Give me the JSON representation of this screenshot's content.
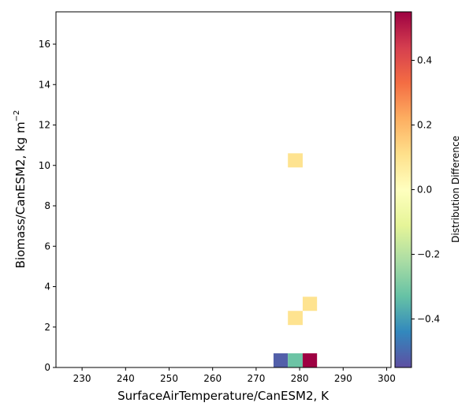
{
  "chart_data": {
    "type": "heatmap",
    "xlabel": "SurfaceAirTemperature/CanESM2,  K",
    "ylabel_main": "Biomass/CanESM2,  kg m",
    "ylabel_sup": "−2",
    "xlim": [
      224,
      301
    ],
    "ylim": [
      0,
      17.6
    ],
    "xticks": [
      230,
      240,
      250,
      260,
      270,
      280,
      290,
      300
    ],
    "yticks": [
      0,
      2,
      4,
      6,
      8,
      10,
      12,
      14,
      16
    ],
    "grid": false,
    "colorbar": {
      "label": "Distribution Difference",
      "min": -0.55,
      "max": 0.55,
      "ticks": [
        -0.4,
        -0.2,
        0.0,
        0.2,
        0.4
      ],
      "tick_labels": [
        "−0.4",
        "−0.2",
        "0.0",
        "0.2",
        "0.4"
      ],
      "colormap": "Spectral_r"
    },
    "cells": [
      {
        "x0": 274.0,
        "x1": 277.3,
        "y0": 0.0,
        "y1": 0.7,
        "value": -0.52
      },
      {
        "x0": 277.3,
        "x1": 280.7,
        "y0": 0.0,
        "y1": 0.7,
        "value": -0.32
      },
      {
        "x0": 280.7,
        "x1": 284.0,
        "y0": 0.0,
        "y1": 0.7,
        "value": 0.55
      },
      {
        "x0": 277.3,
        "x1": 280.7,
        "y0": 2.1,
        "y1": 2.8,
        "value": 0.1
      },
      {
        "x0": 280.7,
        "x1": 284.0,
        "y0": 2.8,
        "y1": 3.5,
        "value": 0.1
      },
      {
        "x0": 277.3,
        "x1": 280.7,
        "y0": 9.9,
        "y1": 10.6,
        "value": 0.1
      }
    ]
  }
}
